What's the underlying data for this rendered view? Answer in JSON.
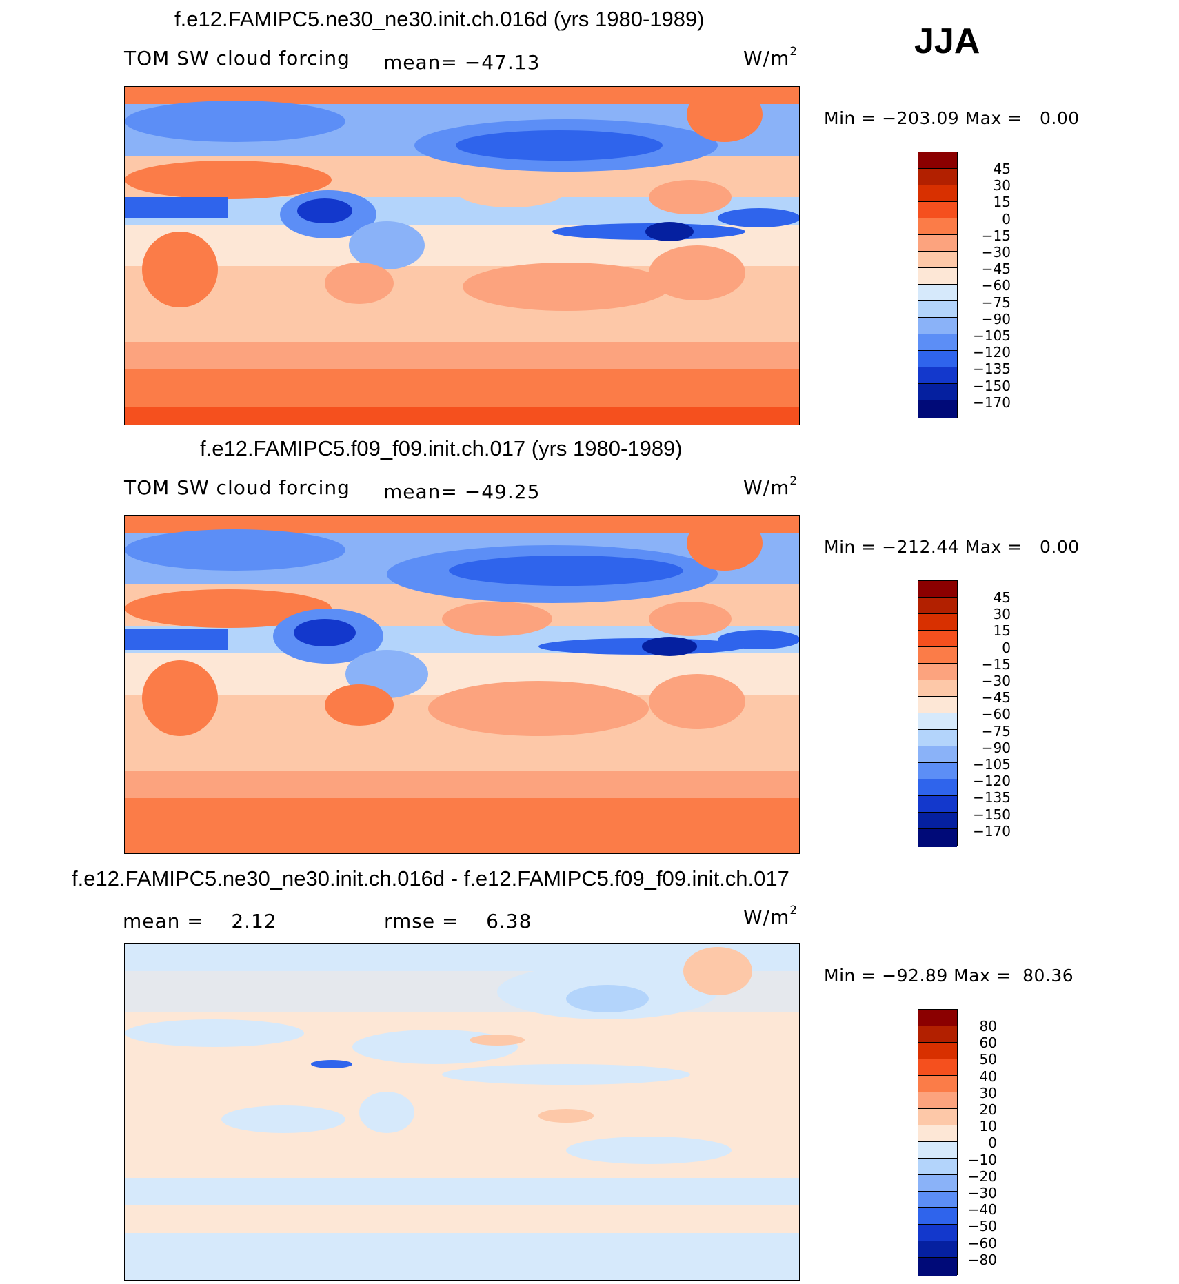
{
  "season": "JJA",
  "panels": [
    {
      "title": "f.e12.FAMIPC5.ne30_ne30.init.ch.016d (yrs 1980-1989)",
      "variable": "TOM SW cloud forcing",
      "mean_label": "mean= −47.13",
      "units": "W/m",
      "units_exp": "2",
      "minmax": "Min = −203.09 Max =   0.00",
      "colorbar_ticks": [
        "45",
        "30",
        "15",
        "0",
        "−15",
        "−30",
        "−45",
        "−60",
        "−75",
        "−90",
        "−105",
        "−120",
        "−135",
        "−150",
        "−170"
      ]
    },
    {
      "title": "f.e12.FAMIPC5.f09_f09.init.ch.017 (yrs 1980-1989)",
      "variable": "TOM SW cloud forcing",
      "mean_label": "mean= −49.25",
      "units": "W/m",
      "units_exp": "2",
      "minmax": "Min = −212.44 Max =   0.00",
      "colorbar_ticks": [
        "45",
        "30",
        "15",
        "0",
        "−15",
        "−30",
        "−45",
        "−60",
        "−75",
        "−90",
        "−105",
        "−120",
        "−135",
        "−150",
        "−170"
      ]
    },
    {
      "title": "f.e12.FAMIPC5.ne30_ne30.init.ch.016d - f.e12.FAMIPC5.f09_f09.init.ch.017",
      "mean_label": "mean =    2.12",
      "rmse_label": "rmse =    6.38",
      "units": "W/m",
      "units_exp": "2",
      "minmax": "Min = −92.89 Max =  80.36",
      "colorbar_ticks": [
        "80",
        "60",
        "50",
        "40",
        "30",
        "20",
        "10",
        "0",
        "−10",
        "−20",
        "−30",
        "−40",
        "−50",
        "−60",
        "−80"
      ]
    }
  ],
  "colors": {
    "abs_scale": [
      "#8b0000",
      "#b22000",
      "#d83000",
      "#f5501e",
      "#fb7c48",
      "#fca37e",
      "#fdc8a8",
      "#fde7d6",
      "#d6e9fb",
      "#b3d4fb",
      "#8ab2f8",
      "#5c8ef6",
      "#2f64ec",
      "#1338cc",
      "#0520a0",
      "#000a78"
    ],
    "diff_scale": [
      "#8b0000",
      "#b22000",
      "#d83000",
      "#f5501e",
      "#fb7c48",
      "#fca37e",
      "#fdc8a8",
      "#fde7d6",
      "#d6e9fb",
      "#b3d4fb",
      "#8ab2f8",
      "#5c8ef6",
      "#2f64ec",
      "#1338cc",
      "#0520a0",
      "#000a78"
    ]
  }
}
